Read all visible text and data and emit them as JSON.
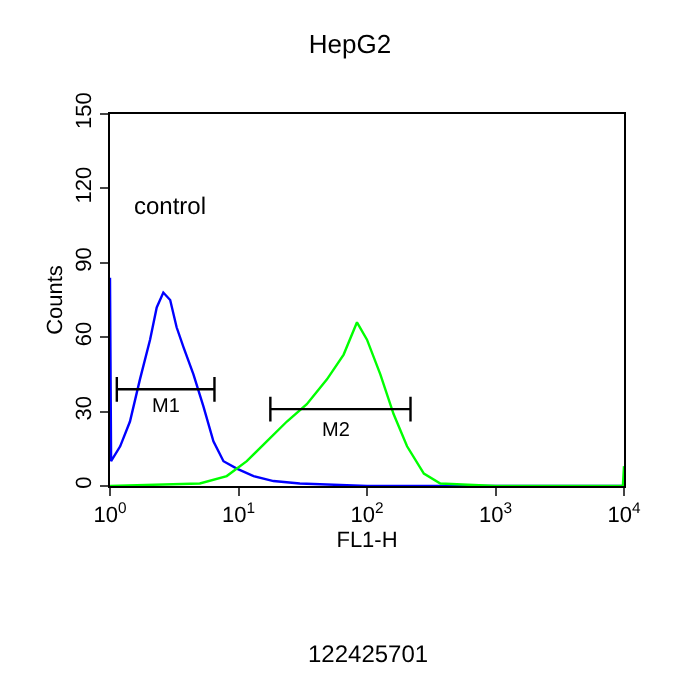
{
  "chart_data": {
    "type": "line",
    "title": "HepG2",
    "xlabel": "FL1-H",
    "ylabel": "Counts",
    "log": "x",
    "xlim": [
      1,
      10000
    ],
    "ylim": [
      0,
      150
    ],
    "xticks": [
      {
        "value": 1,
        "label": "10$^{0}$"
      },
      {
        "value": 10,
        "label": "10$^{1}$"
      },
      {
        "value": 100,
        "label": "10$^{2}$"
      },
      {
        "value": 1000,
        "label": "10$^{3}$"
      },
      {
        "value": 10000,
        "label": "10$^{4}$"
      }
    ],
    "yticks": [
      0,
      30,
      60,
      90,
      120,
      150
    ],
    "series": [
      {
        "color": "#0000ff",
        "x": [
          1,
          1.02,
          1.2,
          1.43,
          1.71,
          2.05,
          2.31,
          2.6,
          2.94,
          3.3,
          3.73,
          4.46,
          5.34,
          6.38,
          7.64,
          9.7,
          13.1,
          18.7,
          30,
          100,
          1000,
          10000
        ],
        "values": [
          84,
          10,
          16,
          26,
          43,
          59,
          72,
          78,
          75,
          64,
          56,
          45,
          32,
          18,
          10,
          7,
          4,
          2,
          1,
          0,
          0,
          0
        ]
      },
      {
        "color": "#00ff00",
        "x": [
          1,
          5,
          8.1,
          11.6,
          16.6,
          23.8,
          34,
          48.8,
          65.8,
          83.6,
          100,
          127,
          161,
          205,
          277,
          372,
          1000,
          9800,
          10000
        ],
        "values": [
          0,
          1,
          4,
          10,
          18,
          26,
          33,
          43,
          53,
          66,
          59,
          45,
          29,
          16,
          5,
          1,
          0,
          0,
          8
        ]
      },
      {
        "color": "#000000",
        "x": [
          1.13,
          1.13,
          1.13,
          6.5,
          6.5,
          6.5
        ],
        "values": [
          44,
          34,
          39,
          39,
          44,
          34
        ]
      },
      {
        "color": "#000000",
        "x": [
          17.7,
          17.7,
          17.7,
          218,
          218,
          218
        ],
        "values": [
          36,
          26,
          31,
          31,
          36,
          26
        ]
      }
    ],
    "annotations": [
      "control",
      "M1",
      "M2",
      "122425701"
    ]
  }
}
